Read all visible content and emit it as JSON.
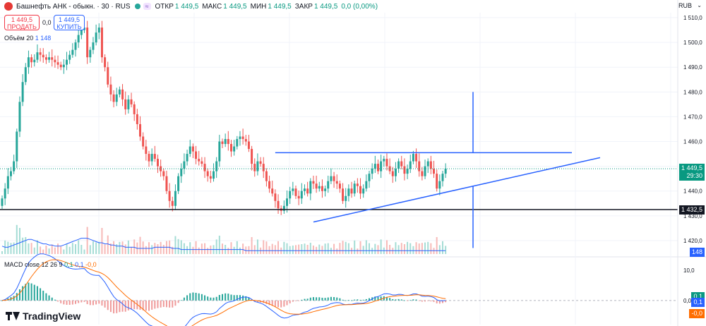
{
  "header": {
    "symbol": "Башнефть АНК - обыкн. · 30 · RUS",
    "open_label": "ОТКР",
    "open": "1 449,5",
    "high_label": "МАКС",
    "high": "1 449,5",
    "low_label": "МИН",
    "low": "1 449,5",
    "close_label": "ЗАКР",
    "close": "1 449,5",
    "change": "0,0 (0,00%)",
    "currency": "RUB"
  },
  "trade": {
    "sell_price": "1 449,5",
    "sell_label": "ПРОДАТЬ",
    "spread": "0,0",
    "buy_price": "1 449,5",
    "buy_label": "КУПИТЬ"
  },
  "volume_legend": {
    "name": "Объём",
    "period": "20",
    "value_a": "1",
    "value_b": "148"
  },
  "macd_legend": {
    "name": "MACD close 12 26 9",
    "v1": "0,1",
    "v2": "0,1",
    "v3": "-0,0"
  },
  "price_labels": {
    "last": "1 449,5",
    "countdown": "29:30",
    "level": "1 432,5",
    "volume": "148"
  },
  "macd_labels": {
    "macd": "0,1",
    "signal": "0,1",
    "hist": "-0,0"
  },
  "logo": "TradingView",
  "colors": {
    "up": "#26a69a",
    "down": "#ef5350",
    "drawing": "#2962ff",
    "macd": "#2962ff",
    "signal": "#ff6d00"
  },
  "chart_data": {
    "type": "candlestick",
    "price_axis": {
      "min": 1414,
      "max": 1512,
      "ticks": [
        1420,
        1430,
        1440,
        1450,
        1460,
        1470,
        1480,
        1490,
        1500,
        1510
      ],
      "tick_labels": [
        "1 420,0",
        "1 430,0",
        "1 440,0",
        "1 450,0",
        "1 460,0",
        "1 470,0",
        "1 480,0",
        "1 490,0",
        "1 500,0",
        "1 510,0"
      ]
    },
    "macd_axis": {
      "min": -8,
      "max": 14,
      "ticks": [
        10,
        0
      ],
      "tick_labels": [
        "10,0",
        "0,0"
      ]
    },
    "close": [
      1437,
      1441,
      1446,
      1448,
      1452,
      1464,
      1476,
      1484,
      1490,
      1494,
      1492,
      1493,
      1496,
      1495,
      1494,
      1493,
      1494,
      1493,
      1492,
      1491,
      1490,
      1491,
      1493,
      1495,
      1497,
      1500,
      1503,
      1505,
      1506,
      1494,
      1497,
      1500,
      1504,
      1506,
      1494,
      1490,
      1483,
      1479,
      1476,
      1479,
      1481,
      1477,
      1473,
      1477,
      1475,
      1471,
      1467,
      1462,
      1458,
      1455,
      1452,
      1455,
      1453,
      1450,
      1448,
      1446,
      1440,
      1436,
      1434,
      1440,
      1446,
      1449,
      1452,
      1455,
      1458,
      1456,
      1453,
      1452,
      1451,
      1448,
      1446,
      1445,
      1448,
      1452,
      1460,
      1459,
      1461,
      1459,
      1456,
      1458,
      1461,
      1462,
      1461,
      1460,
      1457,
      1451,
      1448,
      1452,
      1451,
      1448,
      1444,
      1441,
      1439,
      1436,
      1433,
      1432,
      1434,
      1437,
      1440,
      1441,
      1438,
      1437,
      1440,
      1441,
      1439,
      1444,
      1443,
      1441,
      1442,
      1440,
      1441,
      1444,
      1446,
      1444,
      1443,
      1441,
      1436,
      1438,
      1441,
      1439,
      1443,
      1442,
      1439,
      1441,
      1444,
      1447,
      1449,
      1451,
      1448,
      1452,
      1453,
      1450,
      1448,
      1446,
      1449,
      1452,
      1450,
      1447,
      1449,
      1452,
      1455,
      1452,
      1448,
      1446,
      1450,
      1452,
      1449,
      1447,
      1441,
      1444,
      1447,
      1449
    ],
    "volume_ma": [
      7,
      6,
      6,
      7,
      8,
      9,
      10,
      11,
      12,
      13,
      13,
      12,
      11,
      10,
      9,
      9,
      8,
      8,
      7,
      7,
      7,
      8,
      9,
      10,
      11,
      12,
      13,
      14,
      14,
      14,
      13,
      12,
      11,
      10,
      10,
      9,
      9,
      8,
      8,
      7,
      7,
      7,
      6,
      6,
      6,
      6,
      5,
      5,
      5,
      5,
      5,
      5,
      6,
      6,
      6,
      6,
      6,
      6,
      5,
      5,
      5,
      4,
      4,
      4,
      4,
      4,
      4,
      4,
      4,
      4,
      4,
      4,
      4,
      4,
      4,
      4,
      4,
      4,
      4,
      4,
      4,
      4,
      4,
      3,
      3,
      3,
      3,
      3,
      3,
      3,
      3,
      3,
      3,
      3,
      3,
      3,
      3,
      3,
      3,
      3,
      3,
      3,
      3,
      3,
      3,
      3,
      3,
      3,
      3,
      3,
      3,
      3,
      3,
      3,
      3,
      3,
      3,
      3,
      3,
      3,
      3,
      3,
      3,
      3,
      3,
      3,
      3,
      3,
      3,
      3,
      3,
      3,
      3,
      3,
      3,
      3,
      3,
      3,
      3,
      3,
      3,
      3,
      3,
      3,
      3,
      3,
      3,
      3,
      3,
      3,
      3,
      3
    ],
    "drawings": {
      "horizontal_level": 1432.5,
      "resistance": 1455.5,
      "support_start": 1427.5,
      "support_end": 1453.5,
      "vertical_top": 1480,
      "vertical_bottom": 1417
    }
  }
}
